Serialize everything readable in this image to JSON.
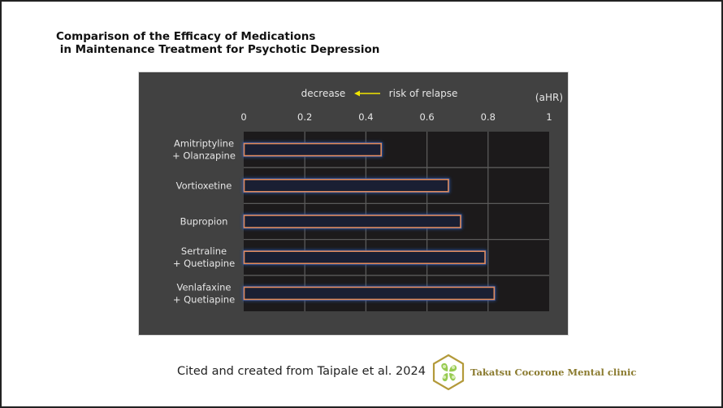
{
  "title_line1": "Comparison of the Efficacy of Medications",
  "title_line2": " in Maintenance Treatment for Psychotic Depression",
  "chart_data": {
    "type": "bar",
    "orientation": "horizontal",
    "title": "Comparison of the Efficacy of Medications in Maintenance Treatment for Psychotic Depression",
    "categories": [
      [
        "Amitriptyline",
        "+ Olanzapine"
      ],
      [
        "Vortioxetine"
      ],
      [
        "Bupropion"
      ],
      [
        "Sertraline",
        " + Quetiapine"
      ],
      [
        "Venlafaxine",
        " + Quetiapine"
      ]
    ],
    "values": [
      0.45,
      0.67,
      0.71,
      0.79,
      0.82
    ],
    "xlabel": "(aHR)",
    "annotation": {
      "left_text": "decrease",
      "arrow": "left-arrow",
      "right_text": "risk of relapse",
      "arrow_color": "#f2e600"
    },
    "xlim": [
      0,
      1
    ],
    "xticks": [
      "0",
      "0.2",
      "0.4",
      "0.6",
      "0.8",
      "1"
    ],
    "xtick_values": [
      0,
      0.2,
      0.4,
      0.6,
      0.8,
      1
    ],
    "grid": true,
    "legend": "none",
    "colors": {
      "panel_bg": "#414141",
      "plot_bg": "#1c1a1b",
      "bar_fill": "#1a1f33",
      "bar_outline": "#e08a5c",
      "bar_glow": "#2a56a8",
      "grid": "#5a5a5a",
      "text": "#e6e6e6"
    }
  },
  "footer": {
    "citation": "Cited and created from Taipale et al. 2024",
    "logo_icon": "clover-hexagon-logo",
    "clinic_name": "Takatsu Cocorone Mental clinic"
  }
}
